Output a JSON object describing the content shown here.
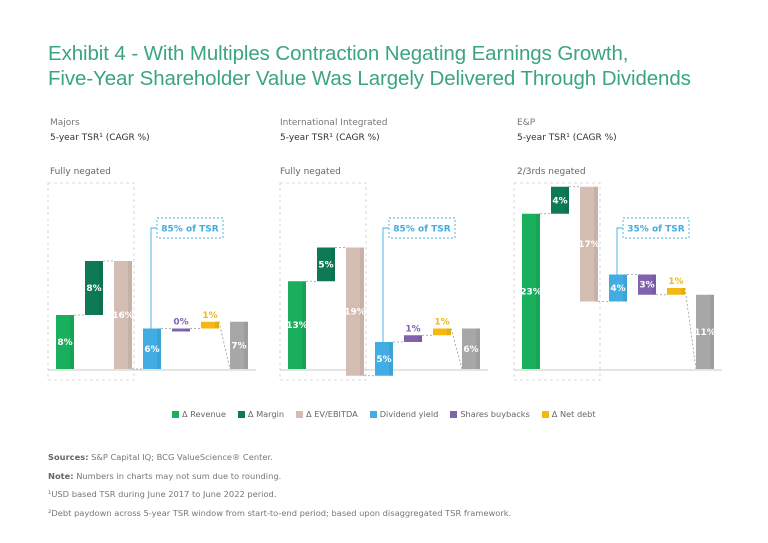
{
  "title_line1": "Exhibit 4 - With Multiples Contraction Negating Earnings Growth,",
  "title_line2": "Five-Year Shareholder Value Was Largely Delivered Through Dividends",
  "colors": {
    "title": "#3aa57f",
    "revenue": "#1aaf5d",
    "margin": "#0e7a55",
    "ev_ebitda": "#d4bdb2",
    "dividend": "#41ade2",
    "buybacks": "#8063ad",
    "net_debt": "#f5b810",
    "total": "#a7a7a7",
    "callout": "#41ade2"
  },
  "legend": [
    {
      "label": "Δ Revenue",
      "key": "revenue"
    },
    {
      "label": "Δ Margin",
      "key": "margin"
    },
    {
      "label": "Δ EV/EBITDA",
      "key": "ev_ebitda"
    },
    {
      "label": "Dividend yield",
      "key": "dividend"
    },
    {
      "label": "Shares buybacks",
      "key": "buybacks"
    },
    {
      "label": "Δ Net debt",
      "key": "net_debt"
    }
  ],
  "chart_data": [
    {
      "type": "waterfall",
      "group": "Majors",
      "subtitle": "5-year TSR¹ (CAGR %)",
      "note": "Fully negated",
      "callout": "85% of TSR",
      "categories": [
        "Δ Revenue",
        "Δ Margin",
        "Δ EV/EBITDA",
        "Dividend yield",
        "Shares buybacks",
        "Δ Net debt",
        "TSR"
      ],
      "values": [
        8,
        8,
        -16,
        6,
        0,
        1,
        7
      ],
      "labels": [
        "8%",
        "8%",
        "16%",
        "6%",
        "0%",
        "1%",
        "7%"
      ]
    },
    {
      "type": "waterfall",
      "group": "International Integrated",
      "subtitle": "5-year TSR¹ (CAGR %)",
      "note": "Fully negated",
      "callout": "85% of TSR",
      "categories": [
        "Δ Revenue",
        "Δ Margin",
        "Δ EV/EBITDA",
        "Dividend yield",
        "Shares buybacks",
        "Δ Net debt",
        "TSR"
      ],
      "values": [
        13,
        5,
        -19,
        5,
        1,
        1,
        6
      ],
      "labels": [
        "13%",
        "5%",
        "19%",
        "5%",
        "1%",
        "1%",
        "6%"
      ]
    },
    {
      "type": "waterfall",
      "group": "E&P",
      "subtitle": "5-year TSR¹ (CAGR %)",
      "note": "2/3rds negated",
      "callout": "35% of TSR",
      "categories": [
        "Δ Revenue",
        "Δ Margin",
        "Δ EV/EBITDA",
        "Dividend yield",
        "Shares buybacks",
        "Δ Net debt",
        "TSR"
      ],
      "values": [
        23,
        4,
        -17,
        4,
        -3,
        1,
        11
      ],
      "labels": [
        "23%",
        "4%",
        "17%",
        "4%",
        "3%",
        "1%",
        "11%"
      ]
    }
  ],
  "footnotes": {
    "sources_label": "Sources:",
    "sources_text": " S&P Capital IQ; BCG ValueScience® Center.",
    "note_label": "Note:",
    "note_text": " Numbers in charts may not sum due to rounding.",
    "fn1": "¹USD based TSR during June 2017 to June 2022 period.",
    "fn2": "²Debt paydown across 5-year TSR window from start-to-end period; based upon disaggregated TSR framework."
  }
}
